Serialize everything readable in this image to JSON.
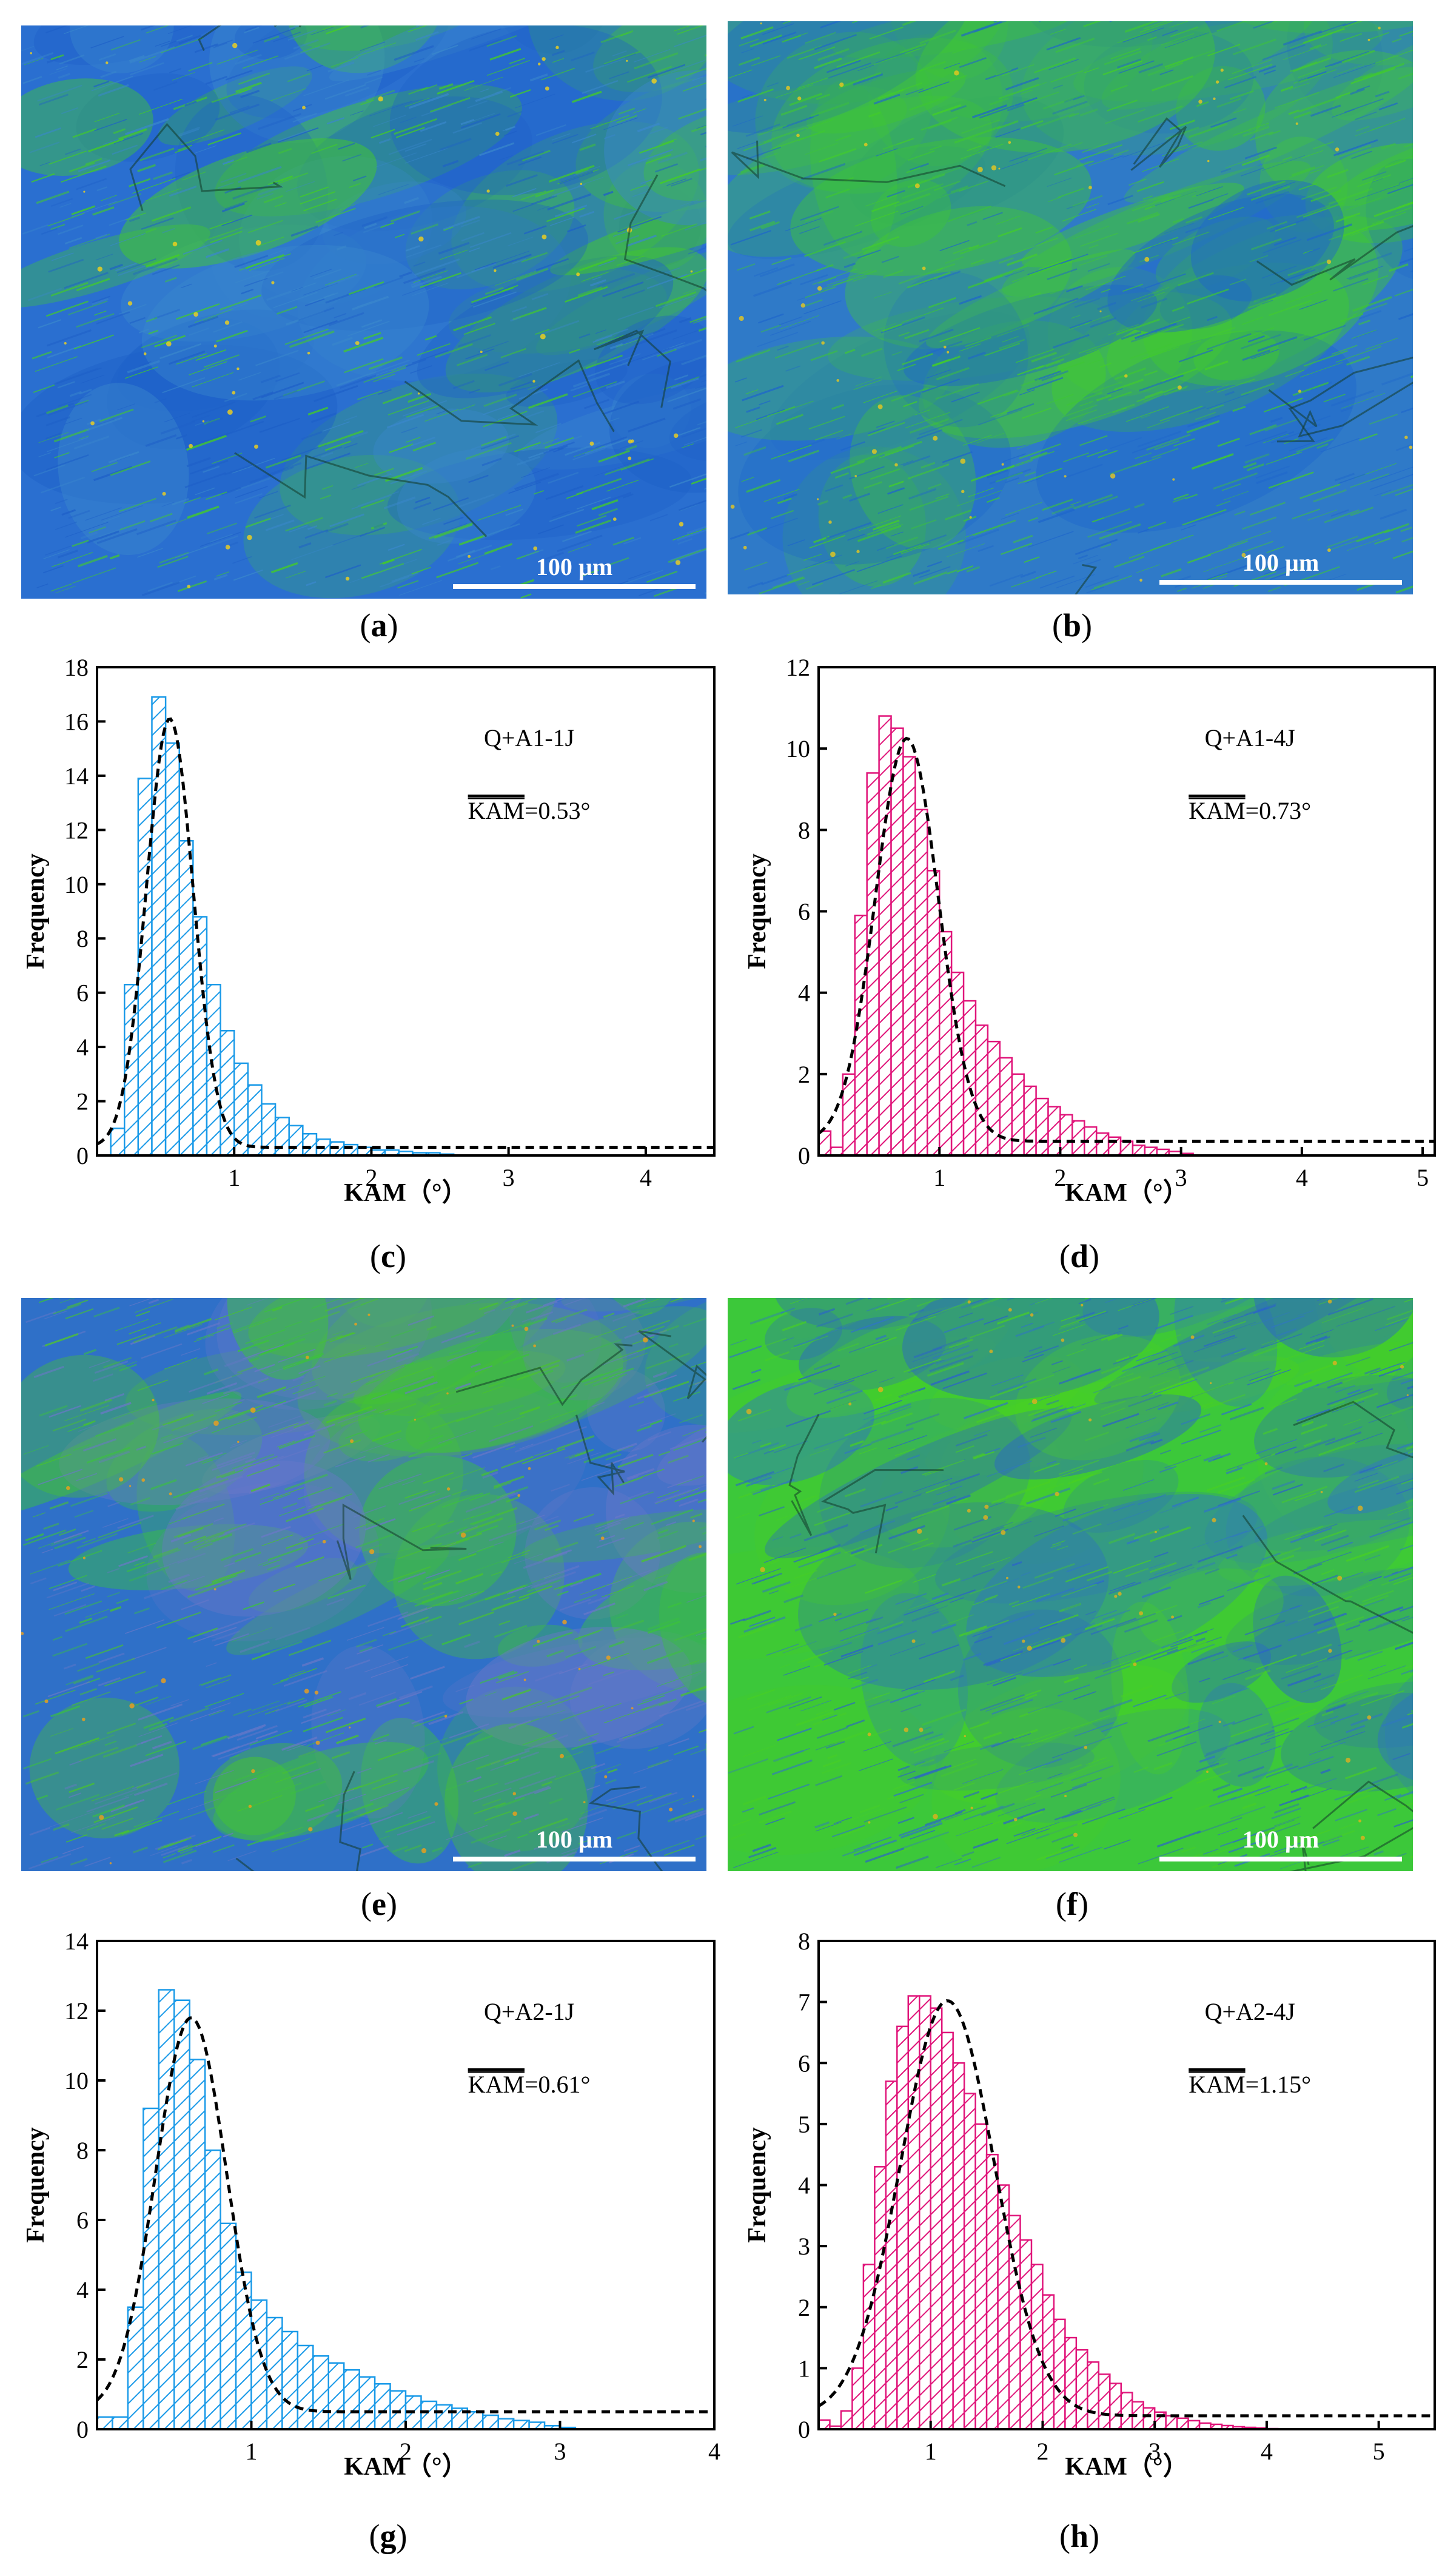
{
  "panels": {
    "a": {
      "caption_letter": "a",
      "scale_label": "100 µm",
      "palette": [
        "#2a6fd0",
        "#1e60c8",
        "#3a88cc",
        "#45d21e",
        "#f2d21a"
      ]
    },
    "b": {
      "caption_letter": "b",
      "scale_label": "100 µm",
      "palette": [
        "#2f7ac8",
        "#3ec832",
        "#44d026",
        "#1e66cc",
        "#e8c81e"
      ]
    },
    "e": {
      "caption_letter": "e",
      "scale_label": "100 µm",
      "palette": [
        "#2f70c8",
        "#3bc43a",
        "#4ac826",
        "#6a78c8",
        "#f0a018"
      ]
    },
    "f": {
      "caption_letter": "f",
      "scale_label": "100 µm",
      "palette": [
        "#3cc83a",
        "#2f74c8",
        "#48d024",
        "#2a62cc",
        "#e0b01e"
      ]
    },
    "c": {
      "caption_letter": "c"
    },
    "d": {
      "caption_letter": "d"
    },
    "g": {
      "caption_letter": "g"
    },
    "h": {
      "caption_letter": "h"
    }
  },
  "chart_data": [
    {
      "id": "c",
      "type": "bar",
      "sample": "Q+A1-1J",
      "mean_label": "KAM",
      "mean_value": "=0.53°",
      "xlabel": "KAM（°）",
      "ylabel": "Frequency",
      "color": "#1a9ae8",
      "xlim": [
        0,
        4.5
      ],
      "ylim": [
        0,
        18
      ],
      "xticks": [
        1,
        2,
        3,
        4
      ],
      "yticks": [
        0,
        2,
        4,
        6,
        8,
        10,
        12,
        14,
        16,
        18
      ],
      "bin_width": 0.1,
      "bin_starts": [
        0.1,
        0.2,
        0.3,
        0.4,
        0.5,
        0.6,
        0.7,
        0.8,
        0.9,
        1.0,
        1.1,
        1.2,
        1.3,
        1.4,
        1.5,
        1.6,
        1.7,
        1.8,
        1.9,
        2.0,
        2.1,
        2.2,
        2.3,
        2.4,
        2.5
      ],
      "values": [
        1.0,
        6.3,
        13.9,
        16.9,
        15.2,
        11.6,
        8.8,
        6.3,
        4.6,
        3.4,
        2.6,
        1.9,
        1.4,
        1.1,
        0.8,
        0.6,
        0.5,
        0.4,
        0.3,
        0.2,
        0.2,
        0.15,
        0.1,
        0.1,
        0.05
      ],
      "fit": {
        "amplitude": 15.8,
        "mean": 0.53,
        "sigma": 0.17,
        "offset": 0.3
      }
    },
    {
      "id": "d",
      "type": "bar",
      "sample": "Q+A1-4J",
      "mean_label": "KAM",
      "mean_value": "=0.73°",
      "xlabel": "KAM（°）",
      "ylabel": "Frequency",
      "color": "#e0157a",
      "xlim": [
        0,
        5.1
      ],
      "ylim": [
        0,
        12
      ],
      "xticks": [
        1,
        2,
        3,
        4,
        5
      ],
      "yticks": [
        0,
        2,
        4,
        6,
        8,
        10,
        12
      ],
      "bin_width": 0.1,
      "bin_starts": [
        0.0,
        0.1,
        0.2,
        0.3,
        0.4,
        0.5,
        0.6,
        0.7,
        0.8,
        0.9,
        1.0,
        1.1,
        1.2,
        1.3,
        1.4,
        1.5,
        1.6,
        1.7,
        1.8,
        1.9,
        2.0,
        2.1,
        2.2,
        2.3,
        2.4,
        2.5,
        2.6,
        2.7,
        2.8,
        2.9,
        3.0
      ],
      "values": [
        0.6,
        0.2,
        2.0,
        5.9,
        9.4,
        10.8,
        10.5,
        9.8,
        8.5,
        7.0,
        5.5,
        4.5,
        3.8,
        3.2,
        2.8,
        2.4,
        2.0,
        1.7,
        1.4,
        1.2,
        1.0,
        0.85,
        0.7,
        0.55,
        0.45,
        0.35,
        0.25,
        0.2,
        0.15,
        0.1,
        0.05
      ],
      "fit": {
        "amplitude": 9.9,
        "mean": 0.73,
        "sigma": 0.26,
        "offset": 0.35
      }
    },
    {
      "id": "g",
      "type": "bar",
      "sample": "Q+A2-1J",
      "mean_label": "KAM",
      "mean_value": "=0.61°",
      "xlabel": "KAM（°）",
      "ylabel": "Frequency",
      "color": "#1a9ae8",
      "xlim": [
        0,
        4
      ],
      "ylim": [
        0,
        14
      ],
      "xticks": [
        1,
        2,
        3,
        4
      ],
      "yticks": [
        0,
        2,
        4,
        6,
        8,
        10,
        12,
        14
      ],
      "bin_width": 0.1,
      "bin_starts": [
        0.0,
        0.1,
        0.2,
        0.3,
        0.4,
        0.5,
        0.6,
        0.7,
        0.8,
        0.9,
        1.0,
        1.1,
        1.2,
        1.3,
        1.4,
        1.5,
        1.6,
        1.7,
        1.8,
        1.9,
        2.0,
        2.1,
        2.2,
        2.3,
        2.4,
        2.5,
        2.6,
        2.7,
        2.8,
        2.9,
        3.0
      ],
      "values": [
        0.35,
        0.35,
        3.5,
        9.2,
        12.6,
        12.3,
        10.6,
        8.0,
        5.9,
        4.5,
        3.7,
        3.2,
        2.8,
        2.4,
        2.1,
        1.9,
        1.7,
        1.5,
        1.3,
        1.1,
        0.95,
        0.8,
        0.7,
        0.6,
        0.5,
        0.4,
        0.3,
        0.25,
        0.2,
        0.1,
        0.05
      ],
      "fit": {
        "amplitude": 11.3,
        "mean": 0.61,
        "sigma": 0.23,
        "offset": 0.5
      }
    },
    {
      "id": "h",
      "type": "bar",
      "sample": "Q+A2-4J",
      "mean_label": "KAM",
      "mean_value": "=1.15°",
      "xlabel": "KAM（°）",
      "ylabel": "Frequency",
      "color": "#e0157a",
      "xlim": [
        0,
        5.5
      ],
      "ylim": [
        0,
        8
      ],
      "xticks": [
        1,
        2,
        3,
        4,
        5
      ],
      "yticks": [
        0,
        1,
        2,
        3,
        4,
        5,
        6,
        7,
        8
      ],
      "bin_width": 0.1,
      "bin_starts": [
        0.0,
        0.1,
        0.2,
        0.3,
        0.4,
        0.5,
        0.6,
        0.7,
        0.8,
        0.9,
        1.0,
        1.1,
        1.2,
        1.3,
        1.4,
        1.5,
        1.6,
        1.7,
        1.8,
        1.9,
        2.0,
        2.1,
        2.2,
        2.3,
        2.4,
        2.5,
        2.6,
        2.7,
        2.8,
        2.9,
        3.0,
        3.1,
        3.2,
        3.3,
        3.4,
        3.5,
        3.6,
        3.7,
        3.8,
        3.9,
        4.0
      ],
      "values": [
        0.15,
        0.05,
        0.3,
        1.0,
        2.7,
        4.3,
        5.7,
        6.6,
        7.1,
        7.1,
        6.9,
        6.5,
        6.0,
        5.5,
        5.0,
        4.5,
        4.0,
        3.5,
        3.1,
        2.7,
        2.2,
        1.8,
        1.5,
        1.3,
        1.1,
        0.9,
        0.75,
        0.6,
        0.45,
        0.35,
        0.28,
        0.22,
        0.18,
        0.14,
        0.1,
        0.08,
        0.06,
        0.04,
        0.03,
        0.02,
        0.01
      ],
      "fit": {
        "amplitude": 6.8,
        "mean": 1.15,
        "sigma": 0.42,
        "offset": 0.22
      }
    }
  ]
}
